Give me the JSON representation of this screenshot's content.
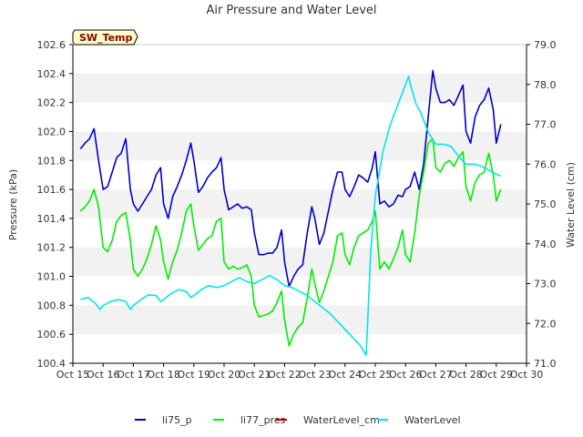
{
  "chart_data": {
    "type": "line",
    "title": "Air Pressure and Water Level",
    "badge": "SW_Temp",
    "xlabel": "",
    "ylabel_left": "Pressure (kPa)",
    "ylabel_right": "Water Level (cm)",
    "xlim": [
      15,
      30
    ],
    "ylim_left": [
      100.4,
      102.6
    ],
    "ylim_right": [
      71.0,
      79.0
    ],
    "x_ticks": [
      15,
      16,
      17,
      18,
      19,
      20,
      21,
      22,
      23,
      24,
      25,
      26,
      27,
      28,
      29,
      30
    ],
    "x_tick_labels": [
      "Oct 15",
      "Oct 16",
      "Oct 17",
      "Oct 18",
      "Oct 19",
      "Oct 20",
      "Oct 21",
      "Oct 22",
      "Oct 23",
      "Oct 24",
      "Oct 25",
      "Oct 26",
      "Oct 27",
      "Oct 28",
      "Oct 29",
      "Oct 30"
    ],
    "y_left_ticks": [
      100.4,
      100.6,
      100.8,
      101.0,
      101.2,
      101.4,
      101.6,
      101.8,
      102.0,
      102.2,
      102.4,
      102.6
    ],
    "y_left_tick_labels": [
      "100.4",
      "100.6",
      "100.8",
      "101.0",
      "101.2",
      "101.4",
      "101.6",
      "101.8",
      "102.0",
      "102.2",
      "102.4",
      "102.6"
    ],
    "y_right_ticks": [
      71,
      72,
      73,
      74,
      75,
      76,
      77,
      78,
      79
    ],
    "y_right_tick_labels": [
      "71.0",
      "72.0",
      "73.0",
      "74.0",
      "75.0",
      "76.0",
      "77.0",
      "78.0",
      "79.0"
    ],
    "grid": "horizontal bands",
    "legend_position": "bottom-center",
    "series": [
      {
        "name": "li75_p",
        "axis": "left",
        "color": "#0000cc",
        "x": [
          15.25,
          15.4,
          15.55,
          15.7,
          15.85,
          16.0,
          16.15,
          16.3,
          16.45,
          16.6,
          16.75,
          16.9,
          17.0,
          17.15,
          17.3,
          17.45,
          17.6,
          17.75,
          17.9,
          18.0,
          18.15,
          18.3,
          18.45,
          18.6,
          18.75,
          18.9,
          19.0,
          19.15,
          19.3,
          19.45,
          19.6,
          19.75,
          19.9,
          20.0,
          20.15,
          20.3,
          20.45,
          20.6,
          20.75,
          20.9,
          21.0,
          21.15,
          21.3,
          21.45,
          21.6,
          21.75,
          21.9,
          22.0,
          22.15,
          22.3,
          22.45,
          22.6,
          22.75,
          22.9,
          23.0,
          23.15,
          23.3,
          23.45,
          23.6,
          23.75,
          23.9,
          24.0,
          24.15,
          24.3,
          24.45,
          24.6,
          24.75,
          24.9,
          25.0,
          25.15,
          25.3,
          25.45,
          25.6,
          25.75,
          25.9,
          26.0,
          26.15,
          26.3,
          26.45,
          26.6,
          26.75,
          26.9,
          27.0,
          27.15,
          27.3,
          27.45,
          27.6,
          27.75,
          27.9,
          28.0,
          28.15,
          28.3,
          28.45,
          28.6,
          28.75,
          28.9,
          29.0,
          29.15
        ],
        "values": [
          101.88,
          101.92,
          101.95,
          102.02,
          101.8,
          101.6,
          101.62,
          101.72,
          101.82,
          101.85,
          101.95,
          101.6,
          101.5,
          101.45,
          101.5,
          101.55,
          101.6,
          101.7,
          101.75,
          101.5,
          101.4,
          101.55,
          101.62,
          101.7,
          101.8,
          101.92,
          101.8,
          101.58,
          101.62,
          101.68,
          101.72,
          101.75,
          101.82,
          101.6,
          101.46,
          101.48,
          101.5,
          101.47,
          101.48,
          101.46,
          101.3,
          101.15,
          101.15,
          101.16,
          101.16,
          101.2,
          101.32,
          101.1,
          100.93,
          101.0,
          101.05,
          101.08,
          101.3,
          101.48,
          101.4,
          101.22,
          101.3,
          101.45,
          101.6,
          101.72,
          101.72,
          101.6,
          101.55,
          101.62,
          101.7,
          101.68,
          101.65,
          101.75,
          101.86,
          101.5,
          101.52,
          101.48,
          101.5,
          101.56,
          101.55,
          101.6,
          101.62,
          101.72,
          101.6,
          101.78,
          102.1,
          102.42,
          102.3,
          102.2,
          102.2,
          102.22,
          102.18,
          102.25,
          102.32,
          102.0,
          101.92,
          102.1,
          102.18,
          102.22,
          102.3,
          102.15,
          101.92,
          102.05
        ]
      },
      {
        "name": "li77_pres",
        "axis": "left",
        "color": "#00ee00",
        "x": [
          15.25,
          15.4,
          15.55,
          15.7,
          15.85,
          16.0,
          16.15,
          16.3,
          16.45,
          16.6,
          16.75,
          16.9,
          17.0,
          17.15,
          17.3,
          17.45,
          17.6,
          17.75,
          17.9,
          18.0,
          18.15,
          18.3,
          18.45,
          18.6,
          18.75,
          18.9,
          19.0,
          19.15,
          19.3,
          19.45,
          19.6,
          19.75,
          19.9,
          20.0,
          20.15,
          20.3,
          20.45,
          20.6,
          20.75,
          20.9,
          21.0,
          21.15,
          21.3,
          21.45,
          21.6,
          21.75,
          21.9,
          22.0,
          22.15,
          22.3,
          22.45,
          22.6,
          22.75,
          22.9,
          23.0,
          23.15,
          23.3,
          23.45,
          23.6,
          23.75,
          23.9,
          24.0,
          24.15,
          24.3,
          24.45,
          24.6,
          24.75,
          24.9,
          25.0,
          25.15,
          25.3,
          25.45,
          25.6,
          25.75,
          25.9,
          26.0,
          26.15,
          26.3,
          26.45,
          26.6,
          26.75,
          26.9,
          27.0,
          27.15,
          27.3,
          27.45,
          27.6,
          27.75,
          27.9,
          28.0,
          28.15,
          28.3,
          28.45,
          28.6,
          28.75,
          28.9,
          29.0,
          29.15
        ],
        "values": [
          101.45,
          101.48,
          101.52,
          101.6,
          101.48,
          101.2,
          101.17,
          101.25,
          101.38,
          101.42,
          101.44,
          101.25,
          101.05,
          101.0,
          101.05,
          101.12,
          101.22,
          101.35,
          101.25,
          101.1,
          100.98,
          101.1,
          101.18,
          101.3,
          101.45,
          101.5,
          101.35,
          101.18,
          101.22,
          101.26,
          101.28,
          101.38,
          101.4,
          101.1,
          101.05,
          101.07,
          101.05,
          101.06,
          101.08,
          101.0,
          100.8,
          100.72,
          100.73,
          100.74,
          100.76,
          100.82,
          100.9,
          100.7,
          100.52,
          100.6,
          100.65,
          100.68,
          100.85,
          101.05,
          100.95,
          100.82,
          100.9,
          101.0,
          101.1,
          101.28,
          101.3,
          101.15,
          101.08,
          101.2,
          101.28,
          101.3,
          101.32,
          101.38,
          101.45,
          101.05,
          101.1,
          101.05,
          101.12,
          101.2,
          101.32,
          101.15,
          101.1,
          101.3,
          101.55,
          101.72,
          101.92,
          101.95,
          101.75,
          101.72,
          101.78,
          101.8,
          101.76,
          101.82,
          101.86,
          101.62,
          101.52,
          101.65,
          101.7,
          101.72,
          101.85,
          101.7,
          101.52,
          101.6
        ]
      },
      {
        "name": "WaterLevel_cm",
        "axis": "right",
        "color": "#cc0000",
        "x": [],
        "values": []
      },
      {
        "name": "WaterLevel",
        "axis": "right",
        "color": "#00e5ee",
        "x": [
          15.25,
          15.5,
          15.75,
          15.9,
          16.0,
          16.25,
          16.5,
          16.75,
          16.9,
          17.0,
          17.25,
          17.5,
          17.75,
          17.9,
          18.0,
          18.25,
          18.5,
          18.75,
          18.9,
          19.0,
          19.25,
          19.5,
          19.75,
          20.0,
          20.25,
          20.5,
          20.75,
          21.0,
          21.25,
          21.5,
          21.75,
          22.0,
          22.25,
          22.5,
          22.75,
          23.0,
          23.25,
          23.5,
          23.75,
          24.0,
          24.25,
          24.5,
          24.7,
          24.78,
          24.85,
          25.0,
          25.25,
          25.5,
          25.75,
          26.0,
          26.1,
          26.2,
          26.35,
          26.5,
          26.75,
          27.0,
          27.25,
          27.5,
          27.75,
          28.0,
          28.25,
          28.5,
          28.75,
          29.0,
          29.15
        ],
        "values": [
          72.6,
          72.65,
          72.5,
          72.35,
          72.45,
          72.55,
          72.6,
          72.55,
          72.35,
          72.45,
          72.6,
          72.72,
          72.7,
          72.55,
          72.6,
          72.75,
          72.85,
          72.8,
          72.65,
          72.7,
          72.85,
          72.95,
          72.9,
          72.95,
          73.05,
          73.15,
          73.05,
          73.0,
          73.1,
          73.2,
          73.1,
          72.95,
          72.9,
          72.8,
          72.7,
          72.55,
          72.4,
          72.25,
          72.05,
          71.85,
          71.65,
          71.45,
          71.2,
          72.6,
          73.8,
          75.2,
          76.3,
          77.0,
          77.5,
          78.0,
          78.2,
          77.9,
          77.5,
          77.3,
          76.8,
          76.5,
          76.5,
          76.45,
          76.2,
          76.0,
          76.0,
          75.95,
          75.85,
          75.75,
          75.7
        ]
      }
    ]
  }
}
